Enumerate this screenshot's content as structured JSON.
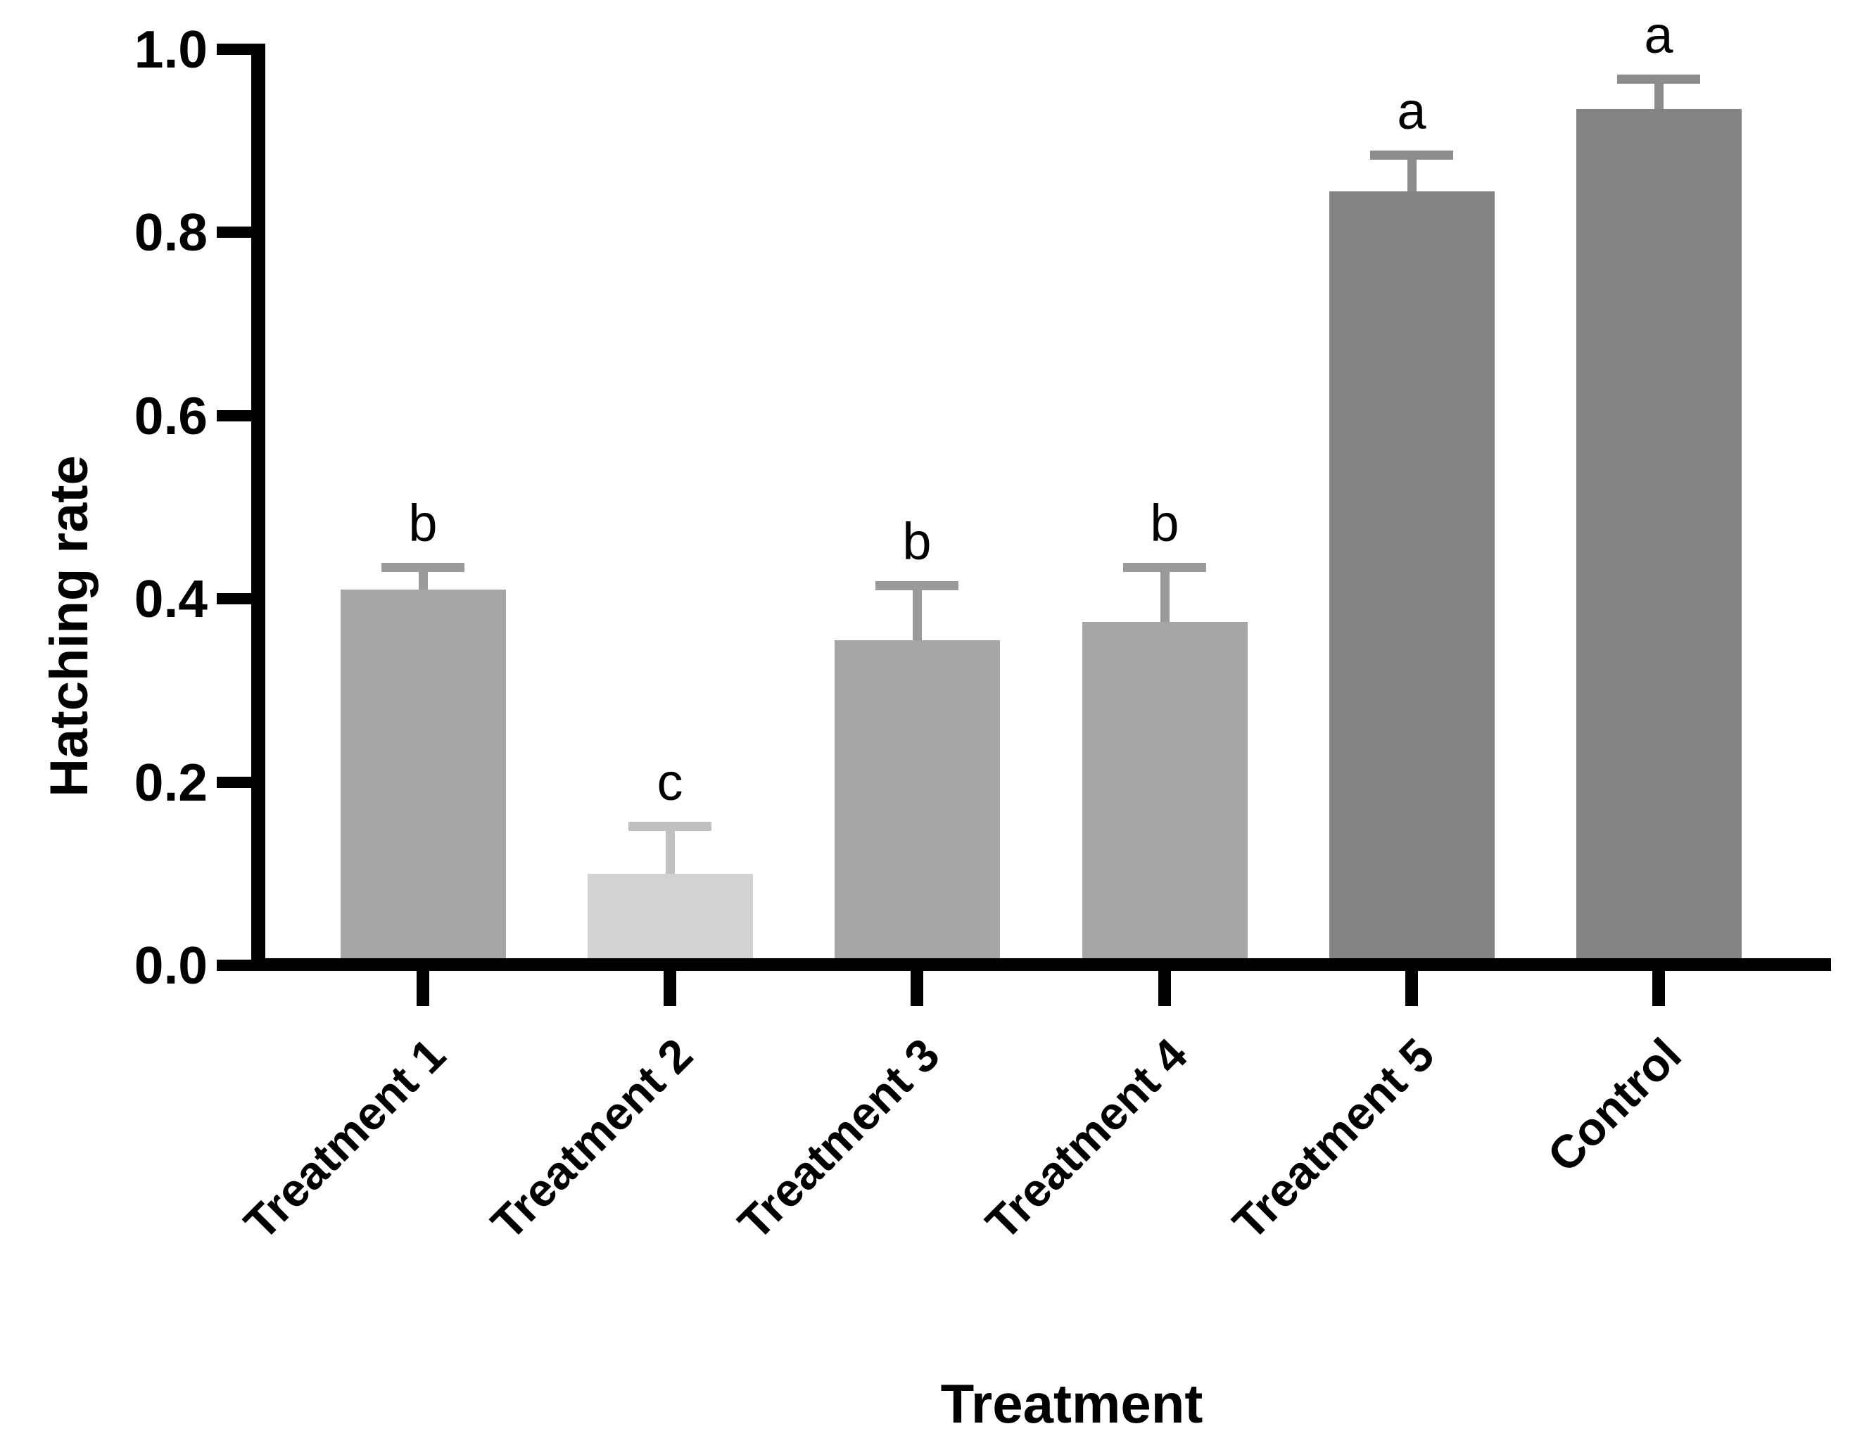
{
  "chart_data": {
    "type": "bar",
    "title": "",
    "xlabel": "Treatment",
    "ylabel": "Hatching rate",
    "categories": [
      "Treatment 1",
      "Treatment 2",
      "Treatment 3",
      "Treatment 4",
      "Treatment 5",
      "Control"
    ],
    "values": [
      0.41,
      0.1,
      0.355,
      0.375,
      0.845,
      0.935
    ],
    "error_tops": [
      0.435,
      0.152,
      0.415,
      0.435,
      0.885,
      0.968
    ],
    "sig_letters": [
      "b",
      "c",
      "b",
      "b",
      "a",
      "a"
    ],
    "bar_colors": [
      "#a6a6a6",
      "#d2d2d2",
      "#a6a6a6",
      "#a6a6a6",
      "#848484",
      "#848484"
    ],
    "error_colors": [
      "#9a9a9a",
      "#c0c0c0",
      "#9a9a9a",
      "#9a9a9a",
      "#8c8c8c",
      "#8c8c8c"
    ],
    "y_ticks": [
      "0.0",
      "0.2",
      "0.4",
      "0.6",
      "0.8",
      "1.0"
    ],
    "ylim": [
      0,
      1.0
    ],
    "grid": false,
    "legend_position": "none",
    "axis_color": "#000000",
    "text_color": "#000000",
    "background": "#ffffff"
  }
}
